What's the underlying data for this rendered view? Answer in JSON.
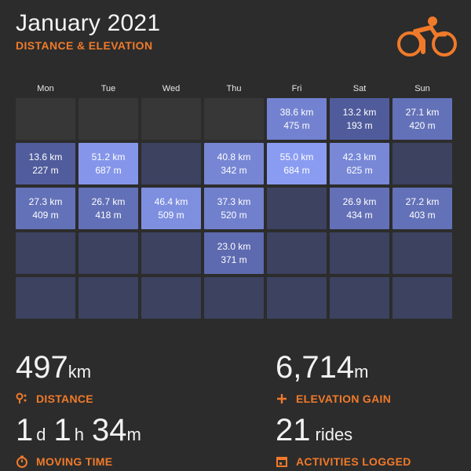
{
  "header": {
    "title": "January 2021",
    "subtitle": "DISTANCE & ELEVATION"
  },
  "logo": {
    "icon": "cyclist-icon",
    "color": "#f07a2a"
  },
  "weekdays": [
    "Mon",
    "Tue",
    "Wed",
    "Thu",
    "Fri",
    "Sat",
    "Sun"
  ],
  "calendar": {
    "weeks": [
      [
        null,
        null,
        null,
        null,
        {
          "km": "38.6 km",
          "m": "475 m"
        },
        {
          "km": "13.2 km",
          "m": "193 m"
        },
        {
          "km": "27.1 km",
          "m": "420 m"
        }
      ],
      [
        {
          "km": "13.6 km",
          "m": "227 m"
        },
        {
          "km": "51.2 km",
          "m": "687 m"
        },
        {
          "km": "",
          "m": ""
        },
        {
          "km": "40.8 km",
          "m": "342 m"
        },
        {
          "km": "55.0 km",
          "m": "684 m"
        },
        {
          "km": "42.3 km",
          "m": "625 m"
        },
        {
          "km": "",
          "m": ""
        }
      ],
      [
        {
          "km": "27.3 km",
          "m": "409 m"
        },
        {
          "km": "26.7 km",
          "m": "418 m"
        },
        {
          "km": "46.4 km",
          "m": "509 m"
        },
        {
          "km": "37.3 km",
          "m": "520 m"
        },
        {
          "km": "",
          "m": ""
        },
        {
          "km": "26.9 km",
          "m": "434 m"
        },
        {
          "km": "27.2 km",
          "m": "403 m"
        }
      ],
      [
        {
          "km": "",
          "m": ""
        },
        {
          "km": "",
          "m": ""
        },
        {
          "km": "",
          "m": ""
        },
        {
          "km": "23.0 km",
          "m": "371 m"
        },
        {
          "km": "",
          "m": ""
        },
        {
          "km": "",
          "m": ""
        },
        {
          "km": "",
          "m": ""
        }
      ],
      [
        {
          "km": "",
          "m": ""
        },
        {
          "km": "",
          "m": ""
        },
        {
          "km": "",
          "m": ""
        },
        {
          "km": "",
          "m": ""
        },
        {
          "km": "",
          "m": ""
        },
        {
          "km": "",
          "m": ""
        },
        {
          "km": "",
          "m": ""
        }
      ]
    ]
  },
  "colors": {
    "accent": "#f07a2a",
    "background": "#2c2c2c",
    "empty_cell": "#373737",
    "no_ride_cell": "#3c4260",
    "ride_low": "#4b5694",
    "ride_high": "#8a9cf2"
  },
  "stats": {
    "distance": {
      "value": "497",
      "unit": "km",
      "label": "DISTANCE",
      "icon": "route-pin-icon"
    },
    "elevation": {
      "value": "6,714",
      "unit": "m",
      "label": "ELEVATION GAIN",
      "icon": "plus-icon"
    },
    "moving_time": {
      "d_value": "1",
      "d_unit": "d",
      "h_value": "1",
      "h_unit": "h",
      "m_value": "34",
      "m_unit": "m",
      "label": "MOVING TIME",
      "icon": "stopwatch-icon"
    },
    "activities": {
      "value": "21",
      "unit": "rides",
      "label": "ACTIVITIES LOGGED",
      "icon": "calendar-icon"
    }
  }
}
